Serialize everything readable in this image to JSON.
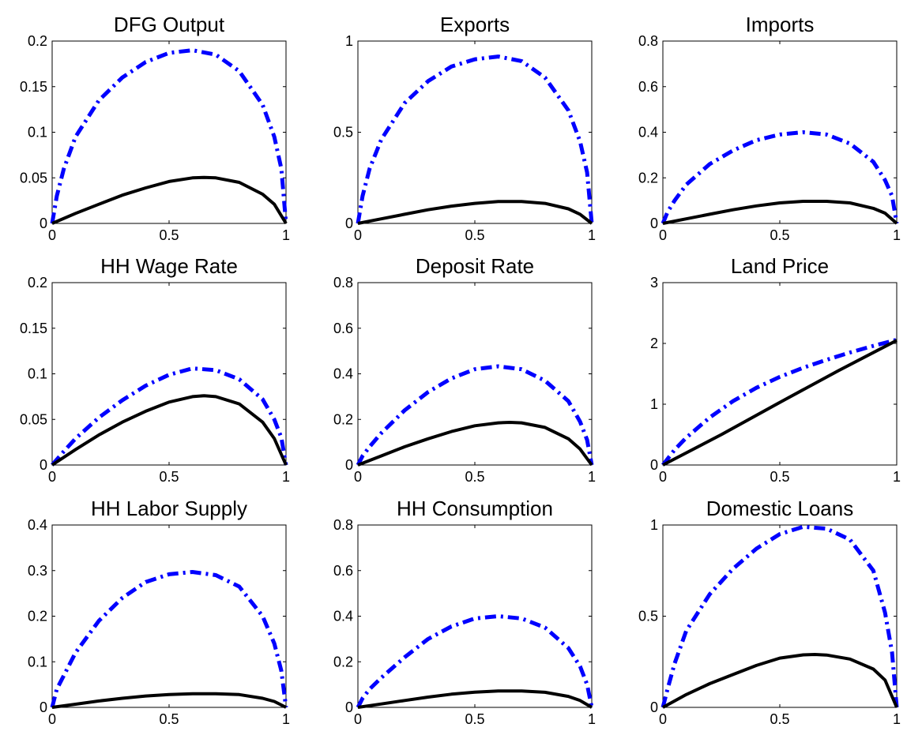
{
  "chart_data": [
    {
      "type": "line",
      "title": "DFG Output",
      "xlim": [
        0,
        1
      ],
      "ylim": [
        0,
        0.2
      ],
      "xticks": [
        0,
        0.5,
        1
      ],
      "xtick_labels": [
        "0",
        "0.5",
        "1"
      ],
      "yticks": [
        0,
        0.05,
        0.1,
        0.15,
        0.2
      ],
      "ytick_labels": [
        "0",
        "0.05",
        "0.1",
        "0.15",
        "0.2"
      ],
      "series": [
        {
          "style": "solid",
          "color": "#000000",
          "x": [
            0,
            0.1,
            0.2,
            0.3,
            0.4,
            0.5,
            0.6,
            0.65,
            0.7,
            0.8,
            0.9,
            0.95,
            1
          ],
          "y": [
            0,
            0.011,
            0.021,
            0.031,
            0.039,
            0.046,
            0.05,
            0.0505,
            0.05,
            0.045,
            0.032,
            0.021,
            0
          ]
        },
        {
          "style": "dashdot",
          "color": "#0000ff",
          "x": [
            0,
            0.02,
            0.05,
            0.1,
            0.2,
            0.3,
            0.4,
            0.5,
            0.6,
            0.7,
            0.8,
            0.9,
            0.95,
            0.98,
            1
          ],
          "y": [
            0,
            0.03,
            0.06,
            0.095,
            0.135,
            0.16,
            0.177,
            0.187,
            0.19,
            0.185,
            0.167,
            0.13,
            0.095,
            0.06,
            0
          ]
        }
      ]
    },
    {
      "type": "line",
      "title": "Exports",
      "xlim": [
        0,
        1
      ],
      "ylim": [
        0,
        1
      ],
      "xticks": [
        0,
        0.5,
        1
      ],
      "xtick_labels": [
        "0",
        "0.5",
        "1"
      ],
      "yticks": [
        0,
        0.5,
        1
      ],
      "ytick_labels": [
        "0",
        "0.5",
        "1"
      ],
      "series": [
        {
          "style": "solid",
          "color": "#000000",
          "x": [
            0,
            0.1,
            0.2,
            0.3,
            0.4,
            0.5,
            0.6,
            0.7,
            0.8,
            0.9,
            0.95,
            1
          ],
          "y": [
            0,
            0.025,
            0.05,
            0.075,
            0.095,
            0.11,
            0.12,
            0.12,
            0.11,
            0.08,
            0.05,
            0
          ]
        },
        {
          "style": "dashdot",
          "color": "#0000ff",
          "x": [
            0,
            0.02,
            0.05,
            0.1,
            0.2,
            0.3,
            0.4,
            0.5,
            0.6,
            0.7,
            0.8,
            0.9,
            0.95,
            0.98,
            1
          ],
          "y": [
            0,
            0.15,
            0.3,
            0.46,
            0.66,
            0.78,
            0.86,
            0.9,
            0.915,
            0.89,
            0.8,
            0.62,
            0.45,
            0.28,
            0
          ]
        }
      ]
    },
    {
      "type": "line",
      "title": "Imports",
      "xlim": [
        0,
        1
      ],
      "ylim": [
        0,
        0.8
      ],
      "xticks": [
        0,
        0.5,
        1
      ],
      "xtick_labels": [
        "0",
        "0.5",
        "1"
      ],
      "yticks": [
        0,
        0.2,
        0.4,
        0.6,
        0.8
      ],
      "ytick_labels": [
        "0",
        "0.2",
        "0.4",
        "0.6",
        "0.8"
      ],
      "series": [
        {
          "style": "solid",
          "color": "#000000",
          "x": [
            0,
            0.1,
            0.2,
            0.3,
            0.4,
            0.5,
            0.6,
            0.7,
            0.8,
            0.9,
            0.95,
            1
          ],
          "y": [
            0,
            0.02,
            0.04,
            0.06,
            0.077,
            0.09,
            0.097,
            0.097,
            0.09,
            0.066,
            0.045,
            0
          ]
        },
        {
          "style": "dashdot",
          "color": "#0000ff",
          "x": [
            0,
            0.02,
            0.05,
            0.1,
            0.2,
            0.3,
            0.4,
            0.5,
            0.6,
            0.7,
            0.8,
            0.9,
            0.95,
            0.98,
            1
          ],
          "y": [
            0,
            0.05,
            0.1,
            0.17,
            0.26,
            0.32,
            0.365,
            0.39,
            0.4,
            0.39,
            0.35,
            0.27,
            0.19,
            0.12,
            0
          ]
        }
      ]
    },
    {
      "type": "line",
      "title": "HH Wage Rate",
      "xlim": [
        0,
        1
      ],
      "ylim": [
        0,
        0.2
      ],
      "xticks": [
        0,
        0.5,
        1
      ],
      "xtick_labels": [
        "0",
        "0.5",
        "1"
      ],
      "yticks": [
        0,
        0.05,
        0.1,
        0.15,
        0.2
      ],
      "ytick_labels": [
        "0",
        "0.05",
        "0.1",
        "0.15",
        "0.2"
      ],
      "series": [
        {
          "style": "solid",
          "color": "#000000",
          "x": [
            0,
            0.1,
            0.2,
            0.3,
            0.4,
            0.5,
            0.6,
            0.65,
            0.7,
            0.8,
            0.9,
            0.95,
            1
          ],
          "y": [
            0,
            0.017,
            0.033,
            0.047,
            0.059,
            0.069,
            0.075,
            0.076,
            0.075,
            0.067,
            0.047,
            0.029,
            0
          ]
        },
        {
          "style": "dashdot",
          "color": "#0000ff",
          "x": [
            0,
            0.05,
            0.1,
            0.2,
            0.3,
            0.4,
            0.5,
            0.6,
            0.7,
            0.8,
            0.9,
            0.95,
            0.98,
            1
          ],
          "y": [
            0,
            0.015,
            0.029,
            0.052,
            0.071,
            0.087,
            0.099,
            0.106,
            0.104,
            0.094,
            0.072,
            0.05,
            0.03,
            0
          ]
        }
      ]
    },
    {
      "type": "line",
      "title": "Deposit Rate",
      "xlim": [
        0,
        1
      ],
      "ylim": [
        0,
        0.8
      ],
      "xticks": [
        0,
        0.5,
        1
      ],
      "xtick_labels": [
        "0",
        "0.5",
        "1"
      ],
      "yticks": [
        0,
        0.2,
        0.4,
        0.6,
        0.8
      ],
      "ytick_labels": [
        "0",
        "0.2",
        "0.4",
        "0.6",
        "0.8"
      ],
      "series": [
        {
          "style": "solid",
          "color": "#000000",
          "x": [
            0,
            0.1,
            0.2,
            0.3,
            0.4,
            0.5,
            0.6,
            0.65,
            0.7,
            0.8,
            0.9,
            0.95,
            1
          ],
          "y": [
            0,
            0.04,
            0.08,
            0.115,
            0.147,
            0.172,
            0.185,
            0.187,
            0.185,
            0.165,
            0.115,
            0.07,
            0
          ]
        },
        {
          "style": "dashdot",
          "color": "#0000ff",
          "x": [
            0,
            0.02,
            0.05,
            0.1,
            0.2,
            0.3,
            0.4,
            0.5,
            0.6,
            0.7,
            0.8,
            0.9,
            0.95,
            0.98,
            1
          ],
          "y": [
            0,
            0.04,
            0.08,
            0.14,
            0.24,
            0.32,
            0.38,
            0.42,
            0.433,
            0.42,
            0.37,
            0.28,
            0.19,
            0.11,
            0
          ]
        }
      ]
    },
    {
      "type": "line",
      "title": "Land Price",
      "xlim": [
        0,
        1
      ],
      "ylim": [
        0,
        3
      ],
      "xticks": [
        0,
        0.5,
        1
      ],
      "xtick_labels": [
        "0",
        "0.5",
        "1"
      ],
      "yticks": [
        0,
        1,
        2,
        3
      ],
      "ytick_labels": [
        "0",
        "1",
        "2",
        "3"
      ],
      "series": [
        {
          "style": "solid",
          "color": "#000000",
          "x": [
            0,
            0.25,
            0.5,
            0.75,
            1
          ],
          "y": [
            0,
            0.5,
            1.03,
            1.55,
            2.05
          ]
        },
        {
          "style": "dashdot",
          "color": "#0000ff",
          "x": [
            0,
            0.05,
            0.1,
            0.2,
            0.3,
            0.4,
            0.5,
            0.6,
            0.7,
            0.8,
            0.9,
            1
          ],
          "y": [
            0,
            0.25,
            0.45,
            0.78,
            1.05,
            1.27,
            1.45,
            1.6,
            1.73,
            1.85,
            1.96,
            2.06
          ]
        }
      ]
    },
    {
      "type": "line",
      "title": "HH Labor Supply",
      "xlim": [
        0,
        1
      ],
      "ylim": [
        0,
        0.4
      ],
      "xticks": [
        0,
        0.5,
        1
      ],
      "xtick_labels": [
        "0",
        "0.5",
        "1"
      ],
      "yticks": [
        0,
        0.1,
        0.2,
        0.3,
        0.4
      ],
      "ytick_labels": [
        "0",
        "0.1",
        "0.2",
        "0.3",
        "0.4"
      ],
      "series": [
        {
          "style": "solid",
          "color": "#000000",
          "x": [
            0,
            0.1,
            0.2,
            0.3,
            0.4,
            0.5,
            0.6,
            0.7,
            0.8,
            0.9,
            0.95,
            1
          ],
          "y": [
            0,
            0.007,
            0.014,
            0.02,
            0.025,
            0.028,
            0.03,
            0.03,
            0.028,
            0.02,
            0.013,
            0
          ]
        },
        {
          "style": "dashdot",
          "color": "#0000ff",
          "x": [
            0,
            0.02,
            0.05,
            0.1,
            0.2,
            0.3,
            0.4,
            0.5,
            0.6,
            0.7,
            0.8,
            0.9,
            0.95,
            0.98,
            1
          ],
          "y": [
            0,
            0.04,
            0.07,
            0.12,
            0.19,
            0.24,
            0.275,
            0.292,
            0.297,
            0.29,
            0.265,
            0.2,
            0.14,
            0.08,
            0
          ]
        }
      ]
    },
    {
      "type": "line",
      "title": "HH Consumption",
      "xlim": [
        0,
        1
      ],
      "ylim": [
        0,
        0.8
      ],
      "xticks": [
        0,
        0.5,
        1
      ],
      "xtick_labels": [
        "0",
        "0.5",
        "1"
      ],
      "yticks": [
        0,
        0.2,
        0.4,
        0.6,
        0.8
      ],
      "ytick_labels": [
        "0",
        "0.2",
        "0.4",
        "0.6",
        "0.8"
      ],
      "series": [
        {
          "style": "solid",
          "color": "#000000",
          "x": [
            0,
            0.1,
            0.2,
            0.3,
            0.4,
            0.5,
            0.6,
            0.7,
            0.8,
            0.9,
            0.95,
            1
          ],
          "y": [
            0,
            0.015,
            0.03,
            0.045,
            0.058,
            0.067,
            0.072,
            0.072,
            0.066,
            0.048,
            0.03,
            0
          ]
        },
        {
          "style": "dashdot",
          "color": "#0000ff",
          "x": [
            0,
            0.02,
            0.05,
            0.1,
            0.2,
            0.3,
            0.4,
            0.5,
            0.6,
            0.7,
            0.8,
            0.9,
            0.95,
            0.98,
            1
          ],
          "y": [
            0,
            0.04,
            0.08,
            0.13,
            0.22,
            0.3,
            0.355,
            0.39,
            0.4,
            0.39,
            0.35,
            0.26,
            0.18,
            0.1,
            0
          ]
        }
      ]
    },
    {
      "type": "line",
      "title": "Domestic Loans",
      "xlim": [
        0,
        1
      ],
      "ylim": [
        0,
        1
      ],
      "xticks": [
        0,
        0.5,
        1
      ],
      "xtick_labels": [
        "0",
        "0.5",
        "1"
      ],
      "yticks": [
        0,
        0.5,
        1
      ],
      "ytick_labels": [
        "0",
        "0.5",
        "1"
      ],
      "series": [
        {
          "style": "solid",
          "color": "#000000",
          "x": [
            0,
            0.1,
            0.2,
            0.3,
            0.4,
            0.5,
            0.6,
            0.65,
            0.7,
            0.8,
            0.9,
            0.95,
            1
          ],
          "y": [
            0,
            0.07,
            0.13,
            0.18,
            0.23,
            0.27,
            0.288,
            0.29,
            0.287,
            0.265,
            0.21,
            0.15,
            0
          ]
        },
        {
          "style": "dashdot",
          "color": "#0000ff",
          "x": [
            0,
            0.02,
            0.05,
            0.1,
            0.2,
            0.3,
            0.4,
            0.5,
            0.6,
            0.7,
            0.8,
            0.9,
            0.95,
            0.98,
            1
          ],
          "y": [
            0,
            0.1,
            0.24,
            0.42,
            0.62,
            0.76,
            0.87,
            0.95,
            0.99,
            0.98,
            0.92,
            0.75,
            0.52,
            0.3,
            0
          ]
        }
      ]
    }
  ]
}
